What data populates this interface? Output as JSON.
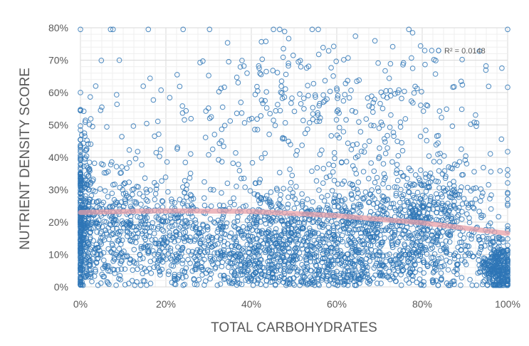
{
  "chart_data": {
    "type": "scatter",
    "title": "",
    "xlabel": "TOTAL CARBOHYDRATES",
    "ylabel": "NUTRIENT DENSITY SCORE",
    "xlim": [
      0,
      1
    ],
    "ylim": [
      0,
      0.8
    ],
    "x_ticks": [
      0,
      0.2,
      0.4,
      0.6,
      0.8,
      1.0
    ],
    "x_tick_labels": [
      "0%",
      "20%",
      "40%",
      "60%",
      "80%",
      "100%"
    ],
    "y_ticks": [
      0,
      0.1,
      0.2,
      0.3,
      0.4,
      0.5,
      0.6,
      0.7,
      0.8
    ],
    "y_tick_labels": [
      "0%",
      "10%",
      "20%",
      "30%",
      "40%",
      "50%",
      "60%",
      "70%",
      "80%"
    ],
    "grid": true,
    "marker": "open-circle",
    "series_color": "#2E75B6",
    "trendline_color": "#E8A0A8",
    "trendline": {
      "type": "polynomial",
      "points": [
        [
          0,
          0.23
        ],
        [
          0.2,
          0.235
        ],
        [
          0.4,
          0.233
        ],
        [
          0.6,
          0.22
        ],
        [
          0.8,
          0.198
        ],
        [
          1.0,
          0.165
        ]
      ]
    },
    "r_squared_label": "R² = 0.0148",
    "r_squared_position": "top-right",
    "density_clusters": [
      {
        "x": 0.005,
        "y": 0.2,
        "spread_x": 0.012,
        "spread_y": 0.14,
        "share": 0.08
      },
      {
        "x": 0.08,
        "y": 0.18,
        "spread_x": 0.07,
        "spread_y": 0.1,
        "share": 0.12
      },
      {
        "x": 0.25,
        "y": 0.14,
        "spread_x": 0.08,
        "spread_y": 0.09,
        "share": 0.1
      },
      {
        "x": 0.45,
        "y": 0.12,
        "spread_x": 0.08,
        "spread_y": 0.09,
        "share": 0.16
      },
      {
        "x": 0.63,
        "y": 0.14,
        "spread_x": 0.09,
        "spread_y": 0.11,
        "share": 0.18
      },
      {
        "x": 0.82,
        "y": 0.18,
        "spread_x": 0.08,
        "spread_y": 0.12,
        "share": 0.18
      },
      {
        "x": 0.975,
        "y": 0.06,
        "spread_x": 0.02,
        "spread_y": 0.04,
        "share": 0.08
      },
      {
        "x": 0.6,
        "y": 0.55,
        "spread_x": 0.2,
        "spread_y": 0.12,
        "share": 0.06
      },
      {
        "x": 0.35,
        "y": 0.4,
        "spread_x": 0.3,
        "spread_y": 0.2,
        "share": 0.04
      }
    ],
    "approx_point_count": 3600
  }
}
